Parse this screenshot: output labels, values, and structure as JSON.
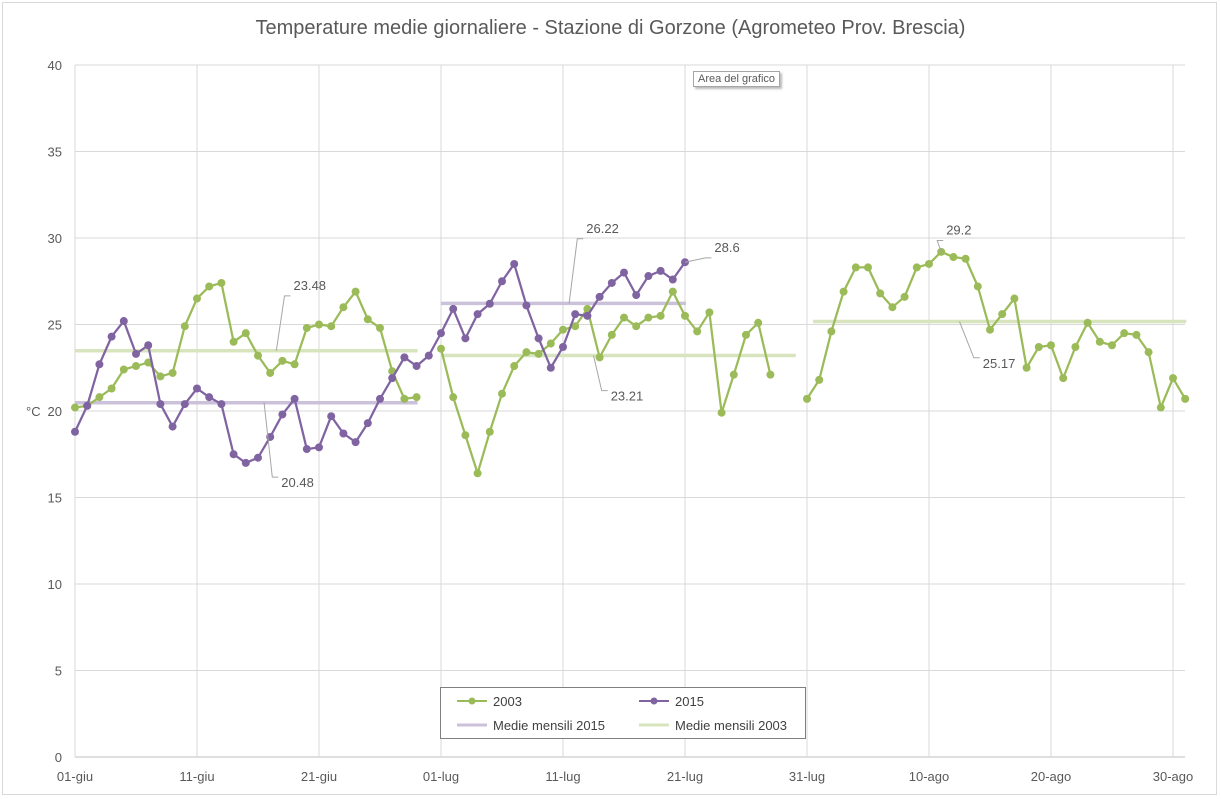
{
  "chart_data": {
    "type": "line",
    "title": "Temperature medie giornaliere - Stazione di Gorzone (Agrometeo Prov. Brescia)",
    "xlabel": "",
    "ylabel": "°C",
    "ylim": [
      0,
      40
    ],
    "yticks": [
      0,
      5,
      10,
      15,
      20,
      25,
      30,
      35,
      40
    ],
    "x_day_range": [
      0,
      91
    ],
    "xticks": [
      {
        "day": 0,
        "label": "01-giu"
      },
      {
        "day": 10,
        "label": "11-giu"
      },
      {
        "day": 20,
        "label": "21-giu"
      },
      {
        "day": 30,
        "label": "01-lug"
      },
      {
        "day": 40,
        "label": "11-lug"
      },
      {
        "day": 50,
        "label": "21-lug"
      },
      {
        "day": 60,
        "label": "31-lug"
      },
      {
        "day": 70,
        "label": "10-ago"
      },
      {
        "day": 80,
        "label": "20-ago"
      },
      {
        "day": 90,
        "label": "30-ago"
      }
    ],
    "grid": true,
    "legend_position": "bottom-center",
    "series": [
      {
        "name": "2003",
        "color": "#9bbb59",
        "marker": true,
        "segments": [
          {
            "start_day": 0,
            "values": [
              20.2,
              20.3,
              20.8,
              21.3,
              22.4,
              22.6,
              22.8,
              22.0,
              22.2,
              24.9,
              26.5,
              27.2,
              27.4,
              24.0,
              24.5,
              23.2,
              22.2,
              22.9,
              22.7,
              24.8,
              25.0,
              24.9,
              26.0,
              26.9,
              25.3,
              24.8,
              22.3,
              20.7,
              20.8
            ]
          },
          {
            "start_day": 30,
            "values": [
              23.6,
              20.8,
              18.6,
              16.4,
              18.8,
              21.0,
              22.6,
              23.4,
              23.3,
              23.9,
              24.7,
              24.9,
              25.9,
              23.1,
              24.4,
              25.4,
              24.9,
              25.4,
              25.5,
              26.9,
              25.5,
              24.6,
              25.7,
              19.9,
              22.1,
              24.4,
              25.1,
              22.1
            ]
          },
          {
            "start_day": 60,
            "values": [
              20.7,
              21.8,
              24.6,
              26.9,
              28.3,
              28.3,
              26.8,
              26.0,
              26.6,
              28.3,
              28.5,
              29.2,
              28.9,
              28.8,
              27.2,
              24.7,
              25.6,
              26.5,
              22.5,
              23.7,
              23.8,
              21.9,
              23.7,
              25.1,
              24.0,
              23.8,
              24.5,
              24.4,
              23.4,
              20.2,
              21.9,
              20.7
            ]
          }
        ]
      },
      {
        "name": "2015",
        "color": "#8064a2",
        "marker": true,
        "segments": [
          {
            "start_day": 0,
            "values": [
              18.8,
              20.3,
              22.7,
              24.3,
              25.2,
              23.3,
              23.8,
              20.4,
              19.1,
              20.4,
              21.3,
              20.8,
              20.4,
              17.5,
              17.0,
              17.3,
              18.5,
              19.8,
              20.7,
              17.8,
              17.9,
              19.7,
              18.7,
              18.2,
              19.3,
              20.7,
              21.9,
              23.1,
              22.6,
              23.2,
              24.5,
              25.9,
              24.2,
              25.6,
              26.2,
              27.5,
              28.5,
              26.1,
              24.2,
              22.5,
              23.7,
              25.6,
              25.5,
              26.6,
              27.4,
              28.0,
              26.7,
              27.8,
              28.1,
              27.6,
              28.6
            ]
          }
        ]
      },
      {
        "name": "Medie mensili 2015",
        "color": "#ccc1da",
        "marker": false,
        "segments": [
          {
            "from_day": 0,
            "to_day": 28,
            "value": 20.48
          },
          {
            "from_day": 30,
            "to_day": 50,
            "value": 26.22
          }
        ]
      },
      {
        "name": "Medie mensili 2003",
        "color": "#d7e4bd",
        "marker": false,
        "segments": [
          {
            "from_day": 0,
            "to_day": 28,
            "value": 23.48
          },
          {
            "from_day": 30,
            "to_day": 59,
            "value": 23.21
          },
          {
            "from_day": 60.5,
            "to_day": 91,
            "value": 25.17
          }
        ]
      }
    ],
    "annotations": [
      {
        "text": "23.48",
        "series": "Medie mensili 2003",
        "day": 16.5,
        "value": 23.48,
        "label_day": 17.5,
        "label_value": 27.0
      },
      {
        "text": "20.48",
        "series": "Medie mensili 2015",
        "day": 15.5,
        "value": 20.48,
        "label_day": 16.5,
        "label_value": 15.6
      },
      {
        "text": "26.22",
        "series": "Medie mensili 2015",
        "day": 40.5,
        "value": 26.22,
        "label_day": 41.5,
        "label_value": 30.3
      },
      {
        "text": "23.21",
        "series": "Medie mensili 2003",
        "day": 42.5,
        "value": 23.21,
        "label_day": 43.5,
        "label_value": 20.6
      },
      {
        "text": "28.6",
        "series": "2015",
        "day": 50,
        "value": 28.6,
        "label_day": 52,
        "label_value": 29.2
      },
      {
        "text": "29.2",
        "series": "2003",
        "day": 71,
        "value": 29.2,
        "label_day": 71,
        "label_value": 30.2
      },
      {
        "text": "25.17",
        "series": "Medie mensili 2003",
        "day": 72.5,
        "value": 25.17,
        "label_day": 74,
        "label_value": 22.5
      }
    ]
  },
  "legend": {
    "items": [
      {
        "label": "2003",
        "color": "#9bbb59",
        "marker": true
      },
      {
        "label": "2015",
        "color": "#8064a2",
        "marker": true
      },
      {
        "label": "Medie mensili 2015",
        "color": "#ccc1da",
        "marker": false
      },
      {
        "label": "Medie mensili 2003",
        "color": "#d7e4bd",
        "marker": false
      }
    ]
  },
  "tooltip": {
    "text": "Area del grafico"
  }
}
